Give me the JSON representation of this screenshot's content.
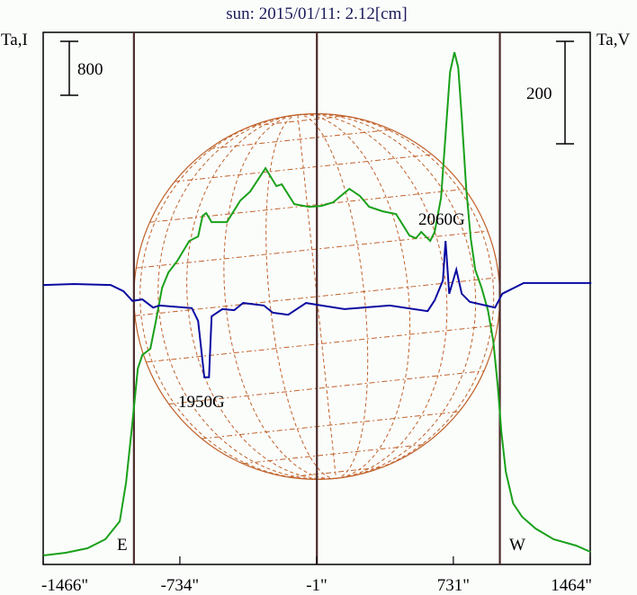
{
  "chart_data": {
    "type": "line",
    "title": "sun: 2015/01/11: 2.12[cm]",
    "ylabel_left": "Ta,I",
    "ylabel_right": "Ta,V",
    "scale_bar_left": {
      "value": 800,
      "label": "800"
    },
    "scale_bar_right": {
      "value": 200,
      "label": "200"
    },
    "xlim": [
      -1466,
      1464
    ],
    "x_ticks": [
      {
        "value": -1466,
        "label": "-1466\""
      },
      {
        "value": -734,
        "label": "-734\""
      },
      {
        "value": -1,
        "label": "-1\""
      },
      {
        "value": 731,
        "label": "731\""
      },
      {
        "value": 1464,
        "label": "1464\""
      }
    ],
    "limb_markers": [
      {
        "value": -980,
        "label": "E"
      },
      {
        "value": 980,
        "label": "W"
      }
    ],
    "solar_radius_arcsec": 980,
    "annotations": [
      {
        "x": -640,
        "text": "1950G",
        "series": "V"
      },
      {
        "x": 690,
        "text": "2060G",
        "series": "V"
      }
    ],
    "colors": {
      "I": "#1aa01a",
      "V": "#0a0aa0",
      "grid": "#c0612a",
      "frame": "#000000",
      "markers": "#4a2a2a"
    },
    "series": [
      {
        "name": "I",
        "axis": "left",
        "x": [
          -1465,
          -1345,
          -1229,
          -1133,
          -1056,
          -1022,
          -988,
          -959,
          -935,
          -892,
          -863,
          -829,
          -795,
          -747,
          -684,
          -636,
          -612,
          -593,
          -564,
          -482,
          -410,
          -357,
          -275,
          -217,
          -188,
          -121,
          -43,
          24,
          87,
          174,
          231,
          280,
          352,
          424,
          496,
          530,
          559,
          607,
          631,
          665,
          689,
          713,
          737,
          757,
          776,
          800,
          824,
          848,
          882,
          916,
          945,
          969,
          988,
          1012,
          1051,
          1099,
          1171,
          1268,
          1388,
          1465
        ],
        "y": [
          0,
          40,
          107,
          240,
          507,
          1080,
          1973,
          2773,
          2973,
          3066,
          3466,
          3972,
          4199,
          4372,
          4666,
          4732,
          5039,
          5079,
          4946,
          4946,
          5265,
          5399,
          5745,
          5479,
          5505,
          5212,
          5172,
          5185,
          5239,
          5439,
          5332,
          5172,
          5106,
          5066,
          4746,
          4706,
          4799,
          4666,
          4799,
          5305,
          6238,
          7172,
          7465,
          7238,
          6505,
          5439,
          4706,
          4239,
          3972,
          3639,
          3173,
          2506,
          1840,
          1240,
          773,
          573,
          400,
          240,
          147,
          53
        ]
      },
      {
        "name": "V",
        "axis": "right",
        "x": [
          -1465,
          -1301,
          -1104,
          -1036,
          -988,
          -935,
          -877,
          -844,
          -670,
          -636,
          -603,
          -578,
          -564,
          -506,
          -443,
          -395,
          -284,
          -236,
          -154,
          -58,
          24,
          149,
          390,
          593,
          631,
          675,
          689,
          709,
          747,
          776,
          819,
          954,
          993,
          1108,
          1470
        ],
        "y": [
          -2,
          0,
          -2,
          -14,
          -33,
          -30,
          -46,
          -42,
          -47,
          -72,
          -182,
          -182,
          -63,
          -49,
          -51,
          -37,
          -42,
          -56,
          -60,
          -37,
          -42,
          -49,
          -42,
          -53,
          -32,
          7,
          84,
          -19,
          28,
          -19,
          -35,
          -46,
          -19,
          2,
          2
        ]
      }
    ]
  }
}
